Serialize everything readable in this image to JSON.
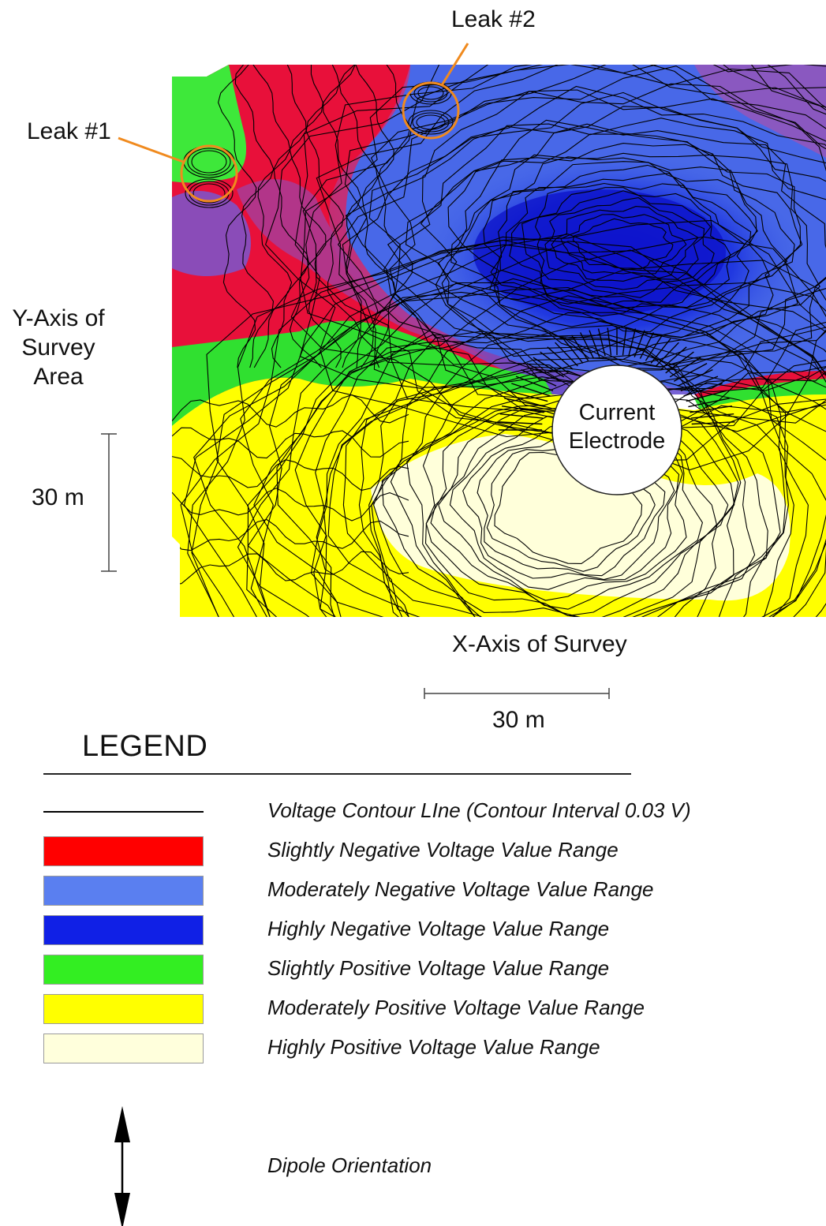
{
  "annotations": {
    "leak1": "Leak #1",
    "leak2": "Leak #2",
    "electrode_line1": "Current",
    "electrode_line2": "Electrode"
  },
  "axes": {
    "y_line1": "Y-Axis of",
    "y_line2": "Survey",
    "y_line3": "Area",
    "x_label": "X-Axis of Survey",
    "y_scale": "30 m",
    "x_scale": "30 m"
  },
  "legend": {
    "title": "LEGEND",
    "contour_label": "Voltage Contour LIne (Contour Interval 0.03 V)",
    "items": [
      {
        "label": "Slightly Negative Voltage Value Range",
        "color": "#ff0000"
      },
      {
        "label": "Moderately Negative Voltage Value Range",
        "color": "#5a7ff0"
      },
      {
        "label": "Highly Negative Voltage Value Range",
        "color": "#1020e6"
      },
      {
        "label": "Slightly Positive Voltage Value Range",
        "color": "#33ee22"
      },
      {
        "label": "Moderately Positive Voltage Value Range",
        "color": "#ffff00"
      },
      {
        "label": "Highly Positive Voltage Value Range",
        "color": "#ffffdc"
      }
    ],
    "dipole_label": "Dipole Orientation"
  },
  "colors": {
    "contour": "#000000",
    "leak_marker": "#f08a1e",
    "purple_transition": "#9c3ca0"
  }
}
